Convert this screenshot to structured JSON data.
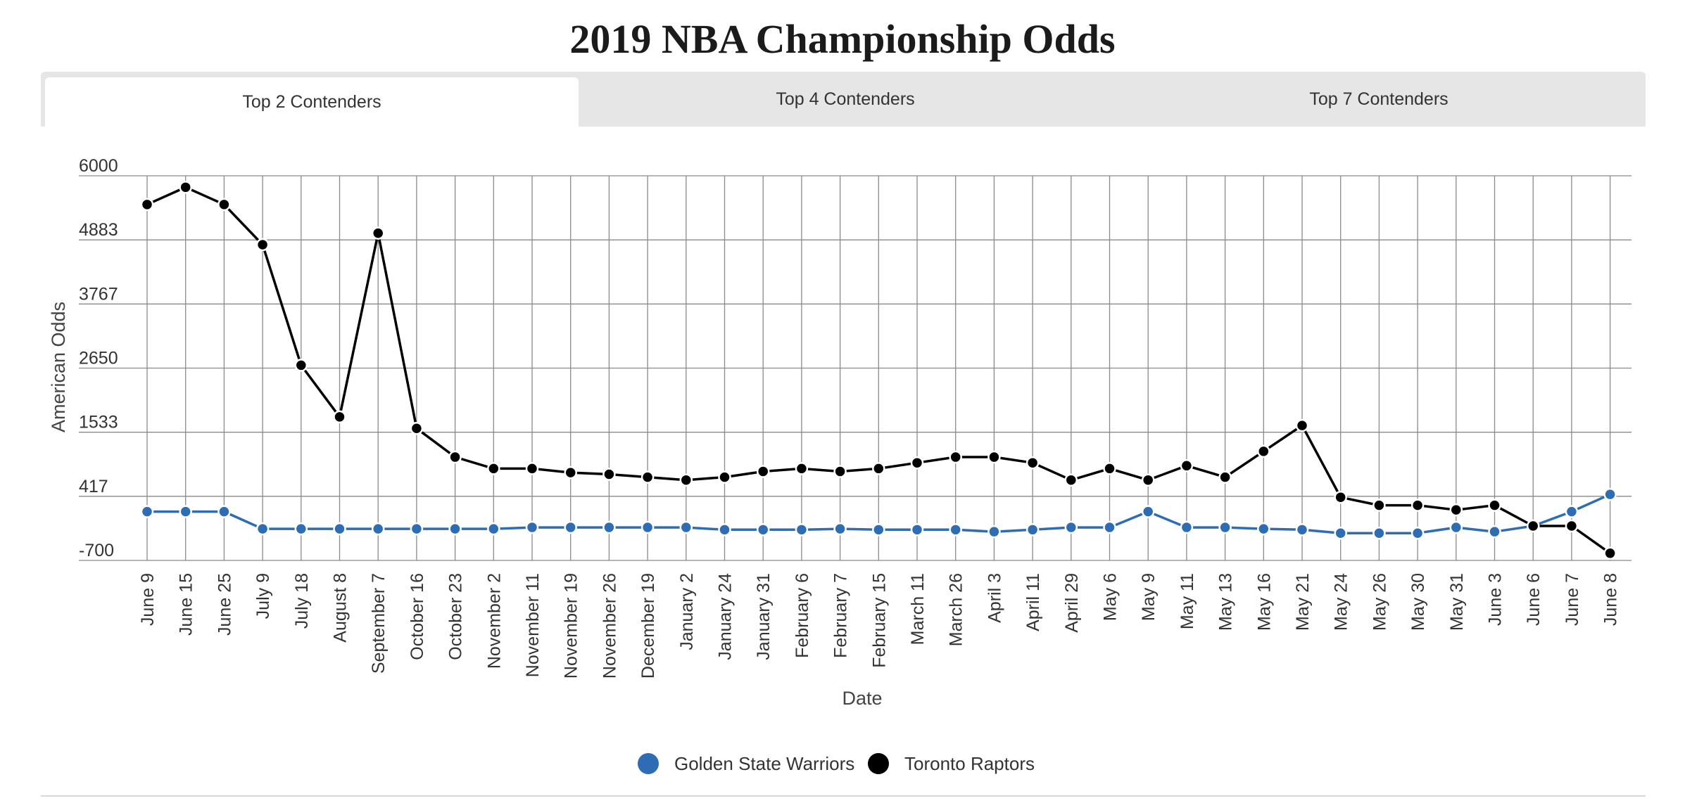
{
  "tabs": [
    {
      "label": "Top 2 Contenders",
      "active": true
    },
    {
      "label": "Top 4 Contenders",
      "active": false
    },
    {
      "label": "Top 7 Contenders",
      "active": false
    }
  ],
  "chart_data": {
    "type": "line",
    "title": "2019 NBA Championship Odds",
    "xlabel": "Date",
    "ylabel": "American Odds",
    "ylim": [
      -700,
      6000
    ],
    "yticks": [
      "6000",
      "4883",
      "3767",
      "2650",
      "1533",
      "417",
      "-700"
    ],
    "grid": true,
    "legend_position": "bottom-center",
    "categories": [
      "June 9",
      "June 15",
      "June 25",
      "July 9",
      "July 18",
      "August 8",
      "September 7",
      "October 16",
      "October 23",
      "November 2",
      "November 11",
      "November 19",
      "November 26",
      "December 19",
      "January 2",
      "January 24",
      "January 31",
      "February 6",
      "February 7",
      "February 15",
      "March 11",
      "March 26",
      "April 3",
      "April 11",
      "April 29",
      "May 6",
      "May 9",
      "May 11",
      "May 13",
      "May 16",
      "May 21",
      "May 24",
      "May 26",
      "May 30",
      "May 31",
      "June 3",
      "June 6",
      "June 7",
      "June 8"
    ],
    "series": [
      {
        "name": "Golden State Warriors",
        "color": "#2e6db4",
        "values": [
          150,
          150,
          150,
          -150,
          -150,
          -150,
          -150,
          -150,
          -150,
          -150,
          -125,
          -125,
          -125,
          -125,
          -125,
          -165,
          -165,
          -165,
          -150,
          -165,
          -165,
          -165,
          -200,
          -165,
          -125,
          -125,
          150,
          -125,
          -125,
          -150,
          -165,
          -225,
          -225,
          -225,
          -125,
          -200,
          -100,
          150,
          450
        ]
      },
      {
        "name": "Toronto Raptors",
        "color": "#000000",
        "values": [
          5500,
          5800,
          5500,
          4800,
          2700,
          1800,
          5000,
          1600,
          1100,
          900,
          900,
          830,
          800,
          750,
          700,
          750,
          850,
          900,
          850,
          900,
          1000,
          1100,
          1100,
          1000,
          700,
          900,
          700,
          950,
          750,
          1200,
          1650,
          400,
          260,
          260,
          180,
          260,
          -100,
          -100,
          -575
        ]
      }
    ]
  }
}
